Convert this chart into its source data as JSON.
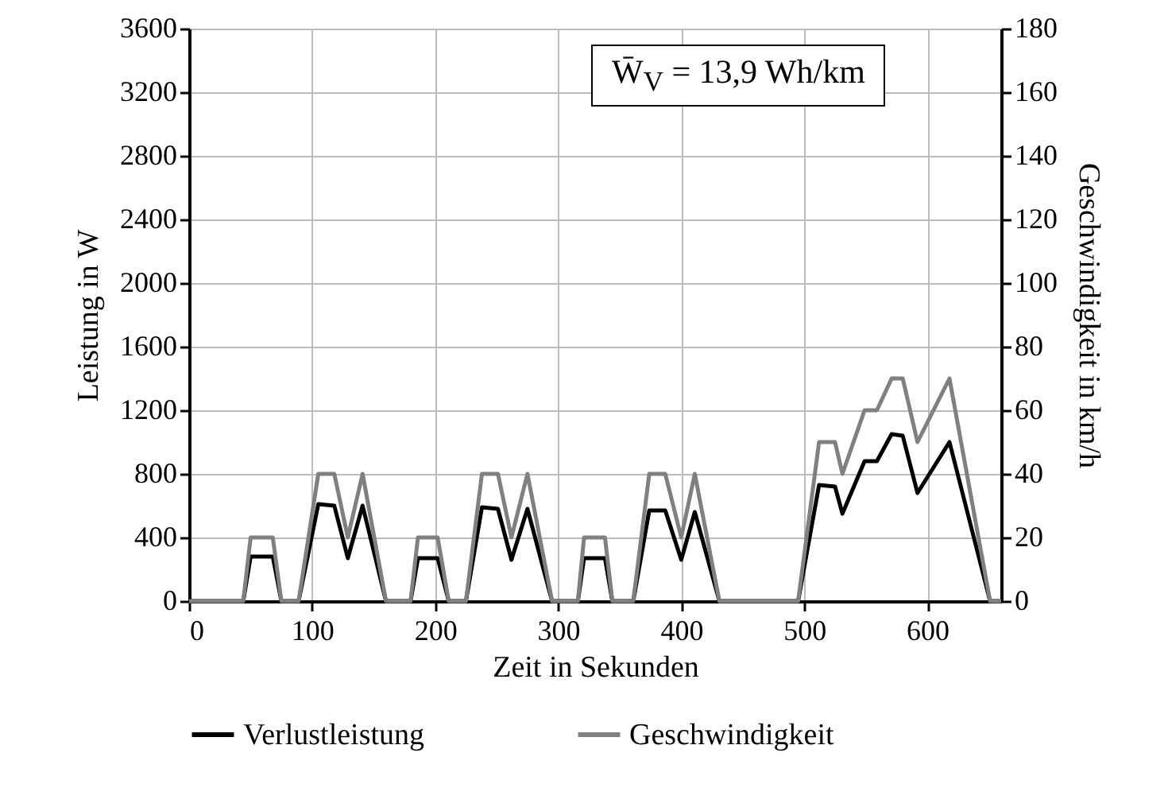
{
  "chart_data": {
    "type": "line",
    "xlabel": "Zeit in Sekunden",
    "ylabel": "Leistung in W",
    "y2label": "Geschwindigkeit in km/h",
    "x": [
      0,
      44,
      50,
      68,
      75,
      89,
      105,
      118,
      129,
      141,
      160,
      180,
      186,
      202,
      211,
      225,
      238,
      251,
      262,
      275,
      295,
      316,
      321,
      338,
      344,
      361,
      374,
      387,
      400,
      411,
      431,
      495,
      512,
      525,
      531,
      549,
      559,
      571,
      580,
      592,
      618,
      651,
      660
    ],
    "series": [
      {
        "name": "Verlustleistung",
        "color": "#000000",
        "values": [
          0,
          0,
          280,
          280,
          0,
          0,
          610,
          600,
          270,
          600,
          0,
          0,
          270,
          270,
          0,
          0,
          590,
          580,
          260,
          580,
          0,
          0,
          270,
          270,
          0,
          0,
          570,
          570,
          260,
          560,
          0,
          0,
          730,
          720,
          550,
          880,
          880,
          1050,
          1040,
          680,
          1000,
          0,
          0
        ]
      },
      {
        "name": "Geschwindigkeit",
        "color": "#808080",
        "axis": "y2",
        "values": [
          0,
          0,
          20,
          20,
          0,
          0,
          40,
          40,
          20,
          40,
          0,
          0,
          20,
          20,
          0,
          0,
          40,
          40,
          20,
          40,
          0,
          0,
          20,
          20,
          0,
          0,
          40,
          40,
          20,
          40,
          0,
          0,
          50,
          50,
          40,
          60,
          60,
          70,
          70,
          50,
          70,
          0,
          0
        ]
      }
    ],
    "xlim": [
      0,
      660
    ],
    "xticks": [
      0,
      100,
      200,
      300,
      400,
      500,
      600
    ],
    "ylim": [
      0,
      3600
    ],
    "yticks": [
      0,
      400,
      800,
      1200,
      1600,
      2000,
      2400,
      2800,
      3200,
      3600
    ],
    "y2lim": [
      0,
      180
    ],
    "y2ticks": [
      0,
      20,
      40,
      60,
      80,
      100,
      120,
      140,
      160,
      180
    ],
    "grid": true,
    "legend": "bottom",
    "marker": "none",
    "line_style": "solid",
    "annotations": [
      "W̄$_{V}$ = 13,9 Wh/km"
    ]
  }
}
